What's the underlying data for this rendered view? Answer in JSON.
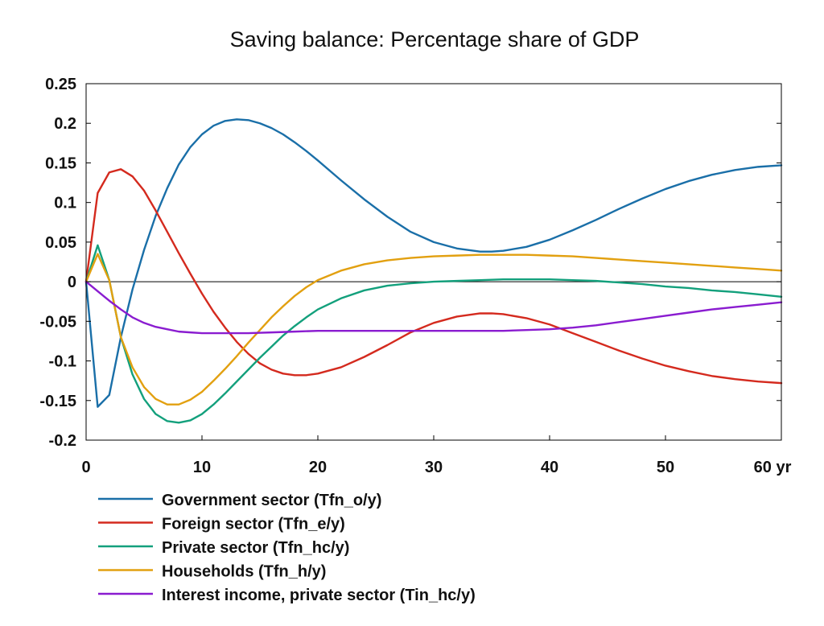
{
  "chart_data": {
    "type": "line",
    "title": "Saving balance: Percentage share of GDP",
    "xlabel": "",
    "ylabel": "",
    "xlim": [
      0,
      60
    ],
    "ylim": [
      -0.2,
      0.25
    ],
    "x_ticks": [
      0,
      10,
      20,
      30,
      40,
      50,
      60
    ],
    "x_tick_labels": [
      "0",
      "10",
      "20",
      "30",
      "40",
      "50",
      "60 yr"
    ],
    "y_ticks": [
      0.25,
      0.2,
      0.15,
      0.1,
      0.05,
      0,
      -0.05,
      -0.1,
      -0.15,
      -0.2
    ],
    "y_tick_labels": [
      "0.25",
      "0.2",
      "0.15",
      "0.1",
      "0.05",
      "0",
      "-0.05",
      "-0.1",
      "-0.15",
      "-0.2"
    ],
    "grid": false,
    "zero_line": true,
    "legend_position": "bottom",
    "series": [
      {
        "name": "Government sector (Tfn_o/y)",
        "color": "#1a6fa8",
        "x": [
          0,
          1,
          2,
          3,
          4,
          5,
          6,
          7,
          8,
          9,
          10,
          11,
          12,
          13,
          14,
          15,
          16,
          17,
          18,
          19,
          20,
          22,
          24,
          26,
          28,
          30,
          32,
          34,
          35,
          36,
          38,
          40,
          42,
          44,
          46,
          48,
          50,
          52,
          54,
          56,
          58,
          60
        ],
        "y": [
          0,
          -0.158,
          -0.143,
          -0.07,
          -0.01,
          0.04,
          0.083,
          0.118,
          0.148,
          0.17,
          0.186,
          0.197,
          0.203,
          0.205,
          0.204,
          0.2,
          0.194,
          0.186,
          0.176,
          0.165,
          0.153,
          0.128,
          0.104,
          0.082,
          0.063,
          0.05,
          0.042,
          0.038,
          0.038,
          0.039,
          0.044,
          0.053,
          0.065,
          0.078,
          0.092,
          0.105,
          0.117,
          0.127,
          0.135,
          0.141,
          0.145,
          0.147
        ]
      },
      {
        "name": "Foreign sector (Tfn_e/y)",
        "color": "#d42a1e",
        "x": [
          0,
          1,
          2,
          3,
          4,
          5,
          6,
          7,
          8,
          9,
          10,
          11,
          12,
          13,
          14,
          15,
          16,
          17,
          18,
          19,
          20,
          22,
          24,
          26,
          28,
          30,
          32,
          34,
          35,
          36,
          38,
          40,
          42,
          44,
          46,
          48,
          50,
          52,
          54,
          56,
          58,
          60
        ],
        "y": [
          0,
          0.112,
          0.138,
          0.142,
          0.133,
          0.115,
          0.09,
          0.063,
          0.036,
          0.01,
          -0.015,
          -0.038,
          -0.058,
          -0.076,
          -0.091,
          -0.103,
          -0.111,
          -0.116,
          -0.118,
          -0.118,
          -0.116,
          -0.108,
          -0.095,
          -0.08,
          -0.064,
          -0.052,
          -0.044,
          -0.04,
          -0.04,
          -0.041,
          -0.046,
          -0.054,
          -0.065,
          -0.076,
          -0.087,
          -0.097,
          -0.106,
          -0.113,
          -0.119,
          -0.123,
          -0.126,
          -0.128
        ]
      },
      {
        "name": "Private sector (Tfn_hc/y)",
        "color": "#13a07c",
        "x": [
          0,
          1,
          2,
          3,
          4,
          5,
          6,
          7,
          8,
          9,
          10,
          11,
          12,
          13,
          14,
          15,
          16,
          17,
          18,
          19,
          20,
          22,
          24,
          26,
          28,
          30,
          32,
          34,
          36,
          38,
          40,
          42,
          44,
          46,
          48,
          50,
          52,
          54,
          56,
          58,
          60
        ],
        "y": [
          0,
          0.046,
          0.002,
          -0.07,
          -0.117,
          -0.148,
          -0.167,
          -0.176,
          -0.178,
          -0.175,
          -0.167,
          -0.155,
          -0.141,
          -0.126,
          -0.111,
          -0.096,
          -0.082,
          -0.068,
          -0.056,
          -0.045,
          -0.035,
          -0.021,
          -0.011,
          -0.005,
          -0.002,
          0,
          0.001,
          0.002,
          0.003,
          0.003,
          0.003,
          0.002,
          0.001,
          -0.001,
          -0.003,
          -0.006,
          -0.008,
          -0.011,
          -0.013,
          -0.016,
          -0.019
        ]
      },
      {
        "name": "Households (Tfn_h/y)",
        "color": "#e2a010",
        "x": [
          0,
          1,
          2,
          3,
          4,
          5,
          6,
          7,
          8,
          9,
          10,
          11,
          12,
          13,
          14,
          15,
          16,
          17,
          18,
          19,
          20,
          22,
          24,
          26,
          28,
          30,
          32,
          34,
          36,
          38,
          40,
          42,
          44,
          46,
          48,
          50,
          52,
          54,
          56,
          58,
          60
        ],
        "y": [
          0,
          0.035,
          0.002,
          -0.07,
          -0.108,
          -0.133,
          -0.148,
          -0.155,
          -0.155,
          -0.149,
          -0.139,
          -0.125,
          -0.11,
          -0.094,
          -0.077,
          -0.061,
          -0.045,
          -0.031,
          -0.018,
          -0.007,
          0.002,
          0.014,
          0.022,
          0.027,
          0.03,
          0.032,
          0.033,
          0.034,
          0.034,
          0.034,
          0.033,
          0.032,
          0.03,
          0.028,
          0.026,
          0.024,
          0.022,
          0.02,
          0.018,
          0.016,
          0.014
        ]
      },
      {
        "name": "Interest income, private sector (Tin_hc/y)",
        "color": "#8a1cd0",
        "x": [
          0,
          1,
          2,
          3,
          4,
          5,
          6,
          7,
          8,
          9,
          10,
          12,
          14,
          16,
          18,
          20,
          22,
          24,
          26,
          28,
          30,
          32,
          34,
          36,
          38,
          40,
          42,
          44,
          46,
          48,
          50,
          52,
          54,
          56,
          58,
          60
        ],
        "y": [
          0,
          -0.012,
          -0.024,
          -0.035,
          -0.045,
          -0.052,
          -0.057,
          -0.06,
          -0.063,
          -0.064,
          -0.065,
          -0.065,
          -0.065,
          -0.064,
          -0.063,
          -0.062,
          -0.062,
          -0.062,
          -0.062,
          -0.062,
          -0.062,
          -0.062,
          -0.062,
          -0.062,
          -0.061,
          -0.06,
          -0.058,
          -0.055,
          -0.051,
          -0.047,
          -0.043,
          -0.039,
          -0.035,
          -0.032,
          -0.029,
          -0.026
        ]
      }
    ]
  }
}
